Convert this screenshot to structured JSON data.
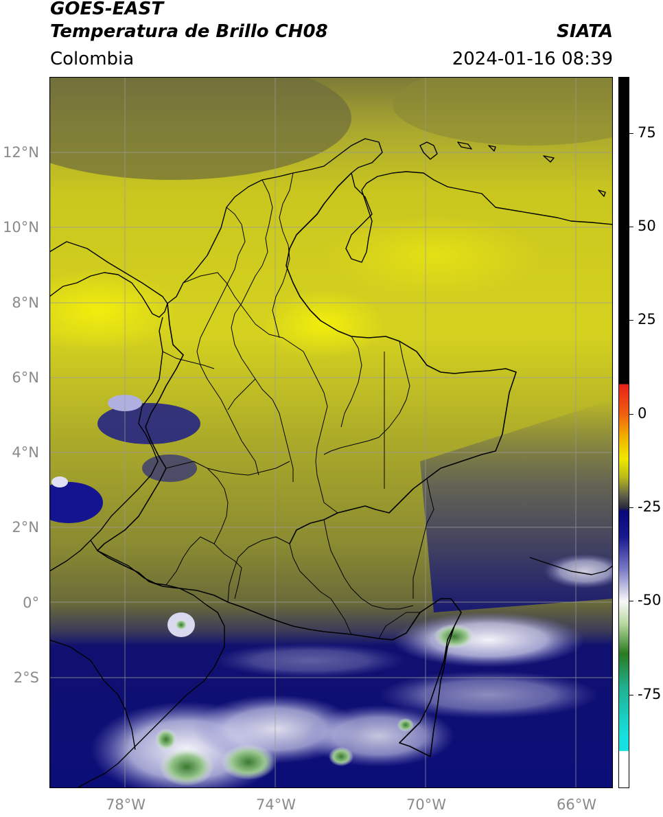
{
  "header": {
    "satellite": "GOES-EAST",
    "product": "Temperatura de Brillo CH08",
    "region": "Colombia",
    "agency": "SIATA",
    "timestamp": "2024-01-16 08:39"
  },
  "map": {
    "projection": "PlateCarree",
    "extent": {
      "lon_min": -80.0,
      "lon_max": -65.0,
      "lat_min": -5.0,
      "lat_max": 14.0
    },
    "gridlines": true,
    "lat_ticks": [
      {
        "value": 12,
        "label": "12°N"
      },
      {
        "value": 10,
        "label": "10°N"
      },
      {
        "value": 8,
        "label": "8°N"
      },
      {
        "value": 6,
        "label": "6°N"
      },
      {
        "value": 4,
        "label": "4°N"
      },
      {
        "value": 2,
        "label": "2°N"
      },
      {
        "value": 0,
        "label": "0°"
      },
      {
        "value": -2,
        "label": "2°S"
      }
    ],
    "lon_ticks": [
      {
        "value": -78,
        "label": "78°W"
      },
      {
        "value": -74,
        "label": "74°W"
      },
      {
        "value": -70,
        "label": "70°W"
      },
      {
        "value": -66,
        "label": "66°W"
      }
    ],
    "colors": {
      "warm_yellow": "#d6d21f",
      "olive": "#7d7d34",
      "dark_gray": "#5c5c5c",
      "navy": "#0a0f7a",
      "light_cloud": "#e8e8f4",
      "green_core": "#4a8a3a"
    }
  },
  "colorbar": {
    "label_ticks": [
      {
        "value": 75,
        "label": "75"
      },
      {
        "value": 50,
        "label": "50"
      },
      {
        "value": 25,
        "label": "25"
      },
      {
        "value": 0,
        "label": "0"
      },
      {
        "value": -25,
        "label": "-25"
      },
      {
        "value": -50,
        "label": "-50"
      },
      {
        "value": -75,
        "label": "-75"
      }
    ],
    "range": [
      -100,
      90
    ],
    "stops": [
      {
        "value": 90,
        "color": "#000000"
      },
      {
        "value": 8,
        "color": "#000000"
      },
      {
        "value": 7.9,
        "color": "#e8201a"
      },
      {
        "value": 0,
        "color": "#f06010"
      },
      {
        "value": -6,
        "color": "#f0b000"
      },
      {
        "value": -12,
        "color": "#f0e800"
      },
      {
        "value": -17,
        "color": "#b8b81a"
      },
      {
        "value": -22,
        "color": "#5c5c4c"
      },
      {
        "value": -25,
        "color": "#2a2a3a"
      },
      {
        "value": -26,
        "color": "#08087a"
      },
      {
        "value": -33,
        "color": "#1a1a90"
      },
      {
        "value": -42,
        "color": "#8080c8"
      },
      {
        "value": -50,
        "color": "#f8f8f8"
      },
      {
        "value": -56,
        "color": "#b8d8a0"
      },
      {
        "value": -64,
        "color": "#2a7a20"
      },
      {
        "value": -73,
        "color": "#20b090"
      },
      {
        "value": -86,
        "color": "#18e0e0"
      },
      {
        "value": -90,
        "color": "#18e0e0"
      },
      {
        "value": -90.1,
        "color": "#ffffff"
      },
      {
        "value": -100,
        "color": "#ffffff"
      }
    ]
  }
}
